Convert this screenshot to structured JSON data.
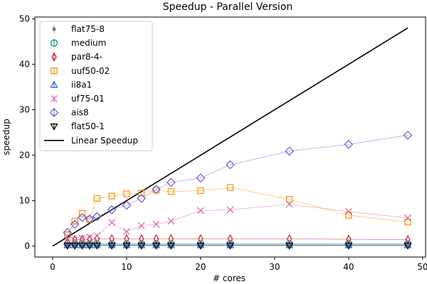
{
  "chart_data": {
    "type": "scatter",
    "title": "Speedup - Parallel Version",
    "xlabel": "# cores",
    "ylabel": "speedup",
    "xlim": [
      -2.4,
      50.4
    ],
    "ylim": [
      -2.4,
      50.4
    ],
    "xticks": [
      0,
      10,
      20,
      30,
      40,
      50
    ],
    "yticks": [
      0,
      10,
      20,
      30,
      40,
      50
    ],
    "grid": false,
    "legend": "top-left",
    "series": [
      {
        "name": "flat75-8",
        "color": "#808080",
        "marker": "dot",
        "x": [
          2,
          3,
          4,
          5,
          6,
          8,
          10,
          12,
          14,
          16,
          20,
          24,
          32,
          40,
          48
        ],
        "y": [
          0.3,
          0.3,
          0.3,
          0.3,
          0.3,
          0.3,
          0.3,
          0.3,
          0.3,
          0.3,
          0.3,
          0.3,
          0.3,
          0.3,
          0.3
        ]
      },
      {
        "name": "medium",
        "color": "#008080",
        "marker": "circle",
        "x": [
          2,
          3,
          4,
          5,
          6,
          8,
          10,
          12,
          14,
          16,
          20,
          24,
          32,
          40,
          48
        ],
        "y": [
          0.5,
          0.5,
          0.5,
          0.5,
          0.5,
          0.5,
          0.5,
          0.5,
          0.5,
          0.5,
          0.5,
          0.5,
          0.5,
          0.5,
          0.5
        ]
      },
      {
        "name": "par8-4-",
        "color": "#c0262d",
        "marker": "thin-diamond",
        "x": [
          2,
          3,
          4,
          5,
          6,
          8,
          10,
          12,
          14,
          16,
          20,
          24,
          32,
          40,
          48
        ],
        "y": [
          1.0,
          1.4,
          1.5,
          1.5,
          1.6,
          1.6,
          1.6,
          1.6,
          1.6,
          1.6,
          1.6,
          1.6,
          1.6,
          1.5,
          1.4
        ]
      },
      {
        "name": "uuf50-02",
        "color": "#ff8c00",
        "marker": "square",
        "x": [
          2,
          3,
          4,
          5,
          6,
          8,
          10,
          12,
          14,
          16,
          20,
          24,
          32,
          40,
          48
        ],
        "y": [
          2.5,
          5.5,
          7.2,
          5.8,
          10.5,
          11.0,
          11.5,
          11.7,
          12.3,
          12.0,
          12.2,
          12.9,
          10.3,
          6.8,
          5.3
        ]
      },
      {
        "name": "ii8a1",
        "color": "#3366cc",
        "marker": "triangle",
        "x": [
          2,
          3,
          4,
          5,
          6,
          8,
          10,
          12,
          14,
          16,
          20,
          24,
          32,
          40,
          48
        ],
        "y": [
          0.2,
          0.2,
          0.2,
          0.2,
          0.2,
          0.2,
          0.2,
          0.2,
          0.2,
          0.2,
          0.2,
          0.2,
          0.2,
          0.2,
          0.2
        ]
      },
      {
        "name": "uf75-01",
        "color": "#d9679d",
        "marker": "x",
        "x": [
          2,
          3,
          4,
          5,
          6,
          8,
          10,
          12,
          14,
          16,
          20,
          24,
          32,
          40,
          48
        ],
        "y": [
          1.5,
          1.3,
          1.7,
          2.0,
          2.3,
          5.2,
          3.2,
          4.5,
          4.8,
          5.5,
          7.8,
          8.0,
          9.2,
          7.6,
          6.2
        ]
      },
      {
        "name": "ais8",
        "color": "#6a5acd",
        "marker": "diamond",
        "x": [
          2,
          3,
          4,
          5,
          6,
          8,
          10,
          12,
          14,
          16,
          20,
          24,
          32,
          40,
          48
        ],
        "y": [
          3.0,
          4.8,
          6.3,
          6.0,
          6.5,
          8.0,
          9.0,
          10.5,
          12.5,
          14.0,
          15.0,
          17.9,
          20.9,
          22.4,
          24.4
        ]
      },
      {
        "name": "flat50-1",
        "color": "#000000",
        "marker": "triangle-down",
        "x": [
          2,
          3,
          4,
          5,
          6,
          8,
          10,
          12,
          14,
          16,
          20,
          24,
          32,
          40,
          48
        ],
        "y": [
          0.1,
          0.1,
          0.1,
          0.1,
          0.1,
          0.1,
          0.1,
          0.1,
          0.1,
          0.1,
          0.1,
          0.1,
          0.1,
          0.1,
          0.1
        ]
      }
    ],
    "reference_line": {
      "name": "Linear Speedup",
      "color": "#000000",
      "x": [
        0,
        48
      ],
      "y": [
        0,
        48
      ]
    }
  }
}
